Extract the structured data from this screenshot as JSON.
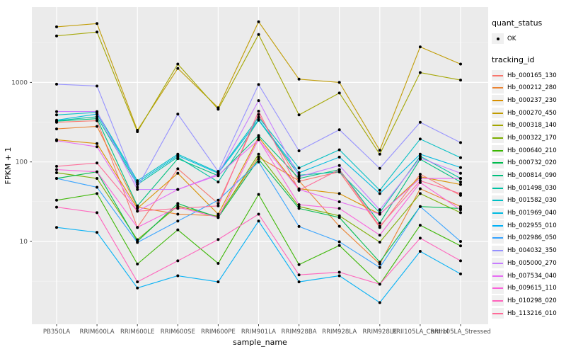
{
  "chart": {
    "x_axis_title": "sample_name",
    "y_axis_title": "FPKM + 1",
    "colors": {
      "panel_bg": "#ebebeb",
      "grid_major": "#ffffff",
      "grid_minor": "#ffffff",
      "tick_text": "#4d4d4d",
      "axis_title_text": "#000000",
      "point": "#000000"
    }
  },
  "legend": {
    "quant_title": "quant_status",
    "quant_items": [
      {
        "label": "OK",
        "glyph": "point-icon"
      }
    ],
    "tracking_title": "tracking_id"
  },
  "chart_data": {
    "type": "line",
    "title": "",
    "xlabel": "sample_name",
    "ylabel": "FPKM + 1",
    "y_scale": "log10",
    "y_ticks": [
      10,
      100,
      1000
    ],
    "ylim": [
      0.9,
      9000
    ],
    "grid": true,
    "legend_position": "right",
    "point_style": "black filled circle at every sample (quant_status = OK)",
    "categories": [
      "PB350LA",
      "RRIM600LA",
      "RRIM600LE",
      "RRIM600SE",
      "RRIM600PE",
      "RRIM901LA",
      "RRIM928BA",
      "RRIM928LA",
      "RRIM928LE",
      "RRII105LA_Control",
      "RRII105LA_Stressed"
    ],
    "series": [
      {
        "name": "Hb_000165_130",
        "color": "#F8766D",
        "values": [
          315,
          330,
          15,
          82,
          30,
          395,
          57,
          75,
          15,
          70,
          38
        ]
      },
      {
        "name": "Hb_000212_280",
        "color": "#EA8331",
        "values": [
          260,
          280,
          27,
          22,
          21,
          115,
          58,
          15.5,
          5.2,
          46,
          27.5
        ]
      },
      {
        "name": "Hb_000237_230",
        "color": "#D89000",
        "values": [
          190,
          170,
          26,
          72,
          22,
          205,
          46,
          40,
          22,
          65,
          52
        ]
      },
      {
        "name": "Hb_000270_450",
        "color": "#C09B00",
        "values": [
          5000,
          5500,
          250,
          1500,
          480,
          5800,
          1100,
          1000,
          140,
          2800,
          1700
        ]
      },
      {
        "name": "Hb_000318_140",
        "color": "#A3A500",
        "values": [
          3850,
          4300,
          240,
          1700,
          460,
          4000,
          390,
          735,
          125,
          1330,
          1070
        ]
      },
      {
        "name": "Hb_000322_170",
        "color": "#7CAE00",
        "values": [
          73,
          62,
          10.5,
          28,
          20.5,
          125,
          27.5,
          21,
          9.8,
          40,
          23
        ]
      },
      {
        "name": "Hb_000640_210",
        "color": "#39B600",
        "values": [
          33,
          40,
          5.2,
          14,
          5.3,
          39,
          5.1,
          8.9,
          2.9,
          16,
          8.8
        ]
      },
      {
        "name": "Hb_000732_020",
        "color": "#00BB4E",
        "values": [
          62,
          75,
          10,
          30,
          20,
          108,
          26,
          20,
          5.5,
          27.5,
          26
        ]
      },
      {
        "name": "Hb_000814_090",
        "color": "#00BF7D",
        "values": [
          325,
          350,
          28,
          110,
          67,
          215,
          62,
          80,
          17,
          108,
          56
        ]
      },
      {
        "name": "Hb_001498_030",
        "color": "#00C1A3",
        "values": [
          330,
          370,
          52,
          115,
          56,
          335,
          68,
          75,
          23,
          118,
          62
        ]
      },
      {
        "name": "Hb_001582_030",
        "color": "#00BFC4",
        "values": [
          390,
          420,
          58,
          125,
          74,
          365,
          84,
          142,
          44,
          194,
          113
        ]
      },
      {
        "name": "Hb_001969_040",
        "color": "#00BAE0",
        "values": [
          335,
          400,
          55,
          120,
          72,
          340,
          73,
          115,
          40,
          125,
          85
        ]
      },
      {
        "name": "Hb_002955_010",
        "color": "#00B0F6",
        "values": [
          15,
          13,
          2.6,
          3.7,
          3.1,
          18,
          3.1,
          3.7,
          1.7,
          7.5,
          3.9
        ]
      },
      {
        "name": "Hb_002986_050",
        "color": "#35A2FF",
        "values": [
          62,
          48,
          9.7,
          18,
          33,
          100,
          15.4,
          9.9,
          4.7,
          27.5,
          10
        ]
      },
      {
        "name": "Hb_004032_350",
        "color": "#9590FF",
        "values": [
          950,
          900,
          48,
          400,
          76,
          940,
          138,
          254,
          83,
          315,
          175
        ]
      },
      {
        "name": "Hb_005000_270",
        "color": "#C77CFF",
        "values": [
          430,
          430,
          45,
          45,
          70,
          590,
          65,
          90,
          25,
          112,
          72
        ]
      },
      {
        "name": "Hb_007534_040",
        "color": "#E76BF3",
        "values": [
          185,
          155,
          24,
          45,
          68,
          190,
          45,
          31.5,
          22,
          62,
          62
        ]
      },
      {
        "name": "Hb_009615_110",
        "color": "#FA62DB",
        "values": [
          80,
          75,
          15,
          27,
          20,
          192,
          29,
          26,
          12,
          55,
          25
        ]
      },
      {
        "name": "Hb_010298_020",
        "color": "#FF62BC",
        "values": [
          27,
          23,
          3.1,
          5.7,
          10.6,
          22,
          3.8,
          4.1,
          2.9,
          11,
          5.7
        ]
      },
      {
        "name": "Hb_113216_010",
        "color": "#FF6A98",
        "values": [
          88,
          97,
          24,
          26,
          28,
          435,
          44,
          80,
          15.5,
          58,
          40
        ]
      }
    ]
  }
}
